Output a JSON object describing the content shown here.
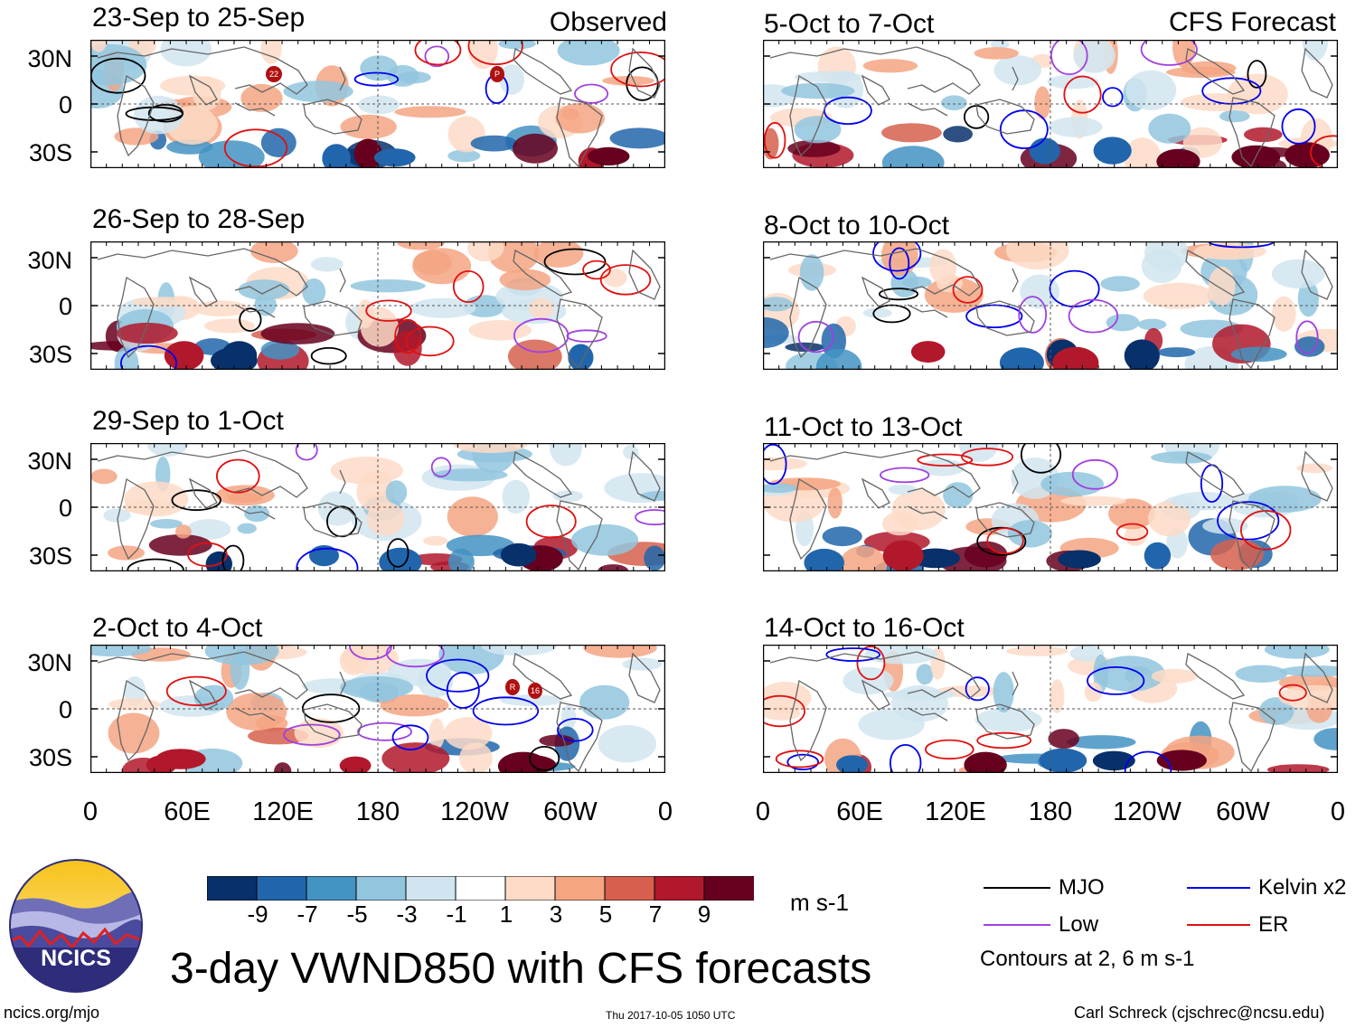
{
  "headers": {
    "observed": "Observed",
    "forecast": "CFS Forecast"
  },
  "observed_panels": [
    {
      "period": "23-Sep to 25-Sep"
    },
    {
      "period": "26-Sep to 28-Sep"
    },
    {
      "period": "29-Sep to 1-Oct"
    },
    {
      "period": "2-Oct to 4-Oct"
    }
  ],
  "forecast_panels": [
    {
      "period": "5-Oct to 7-Oct"
    },
    {
      "period": "8-Oct to 10-Oct"
    },
    {
      "period": "11-Oct to 13-Oct"
    },
    {
      "period": "14-Oct to 16-Oct"
    }
  ],
  "lat_labels": [
    "30N",
    "0",
    "30S"
  ],
  "lon_labels": [
    "0",
    "60E",
    "120E",
    "180",
    "120W",
    "60W",
    "0"
  ],
  "storm_markers": {
    "panel1": [
      "22",
      "P"
    ],
    "panel4": [
      "R",
      "16"
    ]
  },
  "colorbar": {
    "units": "m s-1",
    "ticks": [
      "-9",
      "-7",
      "-5",
      "-3",
      "-1",
      "1",
      "3",
      "5",
      "7",
      "9"
    ],
    "colors": [
      "#08306b",
      "#2166ac",
      "#4393c3",
      "#92c5de",
      "#d1e5f0",
      "#ffffff",
      "#fddbc7",
      "#f4a582",
      "#d6604d",
      "#b2182b",
      "#67001f"
    ]
  },
  "legend": {
    "mjo": "MJO",
    "kelvin": "Kelvin x2",
    "low": "Low",
    "er": "ER",
    "note": "Contours at 2, 6 m s-1",
    "colors": {
      "mjo": "#000000",
      "kelvin": "#0000ee",
      "low": "#a040e0",
      "er": "#e01010"
    }
  },
  "title": "3-day VWND850 with CFS forecasts",
  "logo_text": "NCICS",
  "footer": {
    "url": "ncics.org/mjo",
    "timestamp": "Thu 2017-10-05 1050 UTC",
    "credit": "Carl Schreck (cjschrec@ncsu.edu)"
  }
}
